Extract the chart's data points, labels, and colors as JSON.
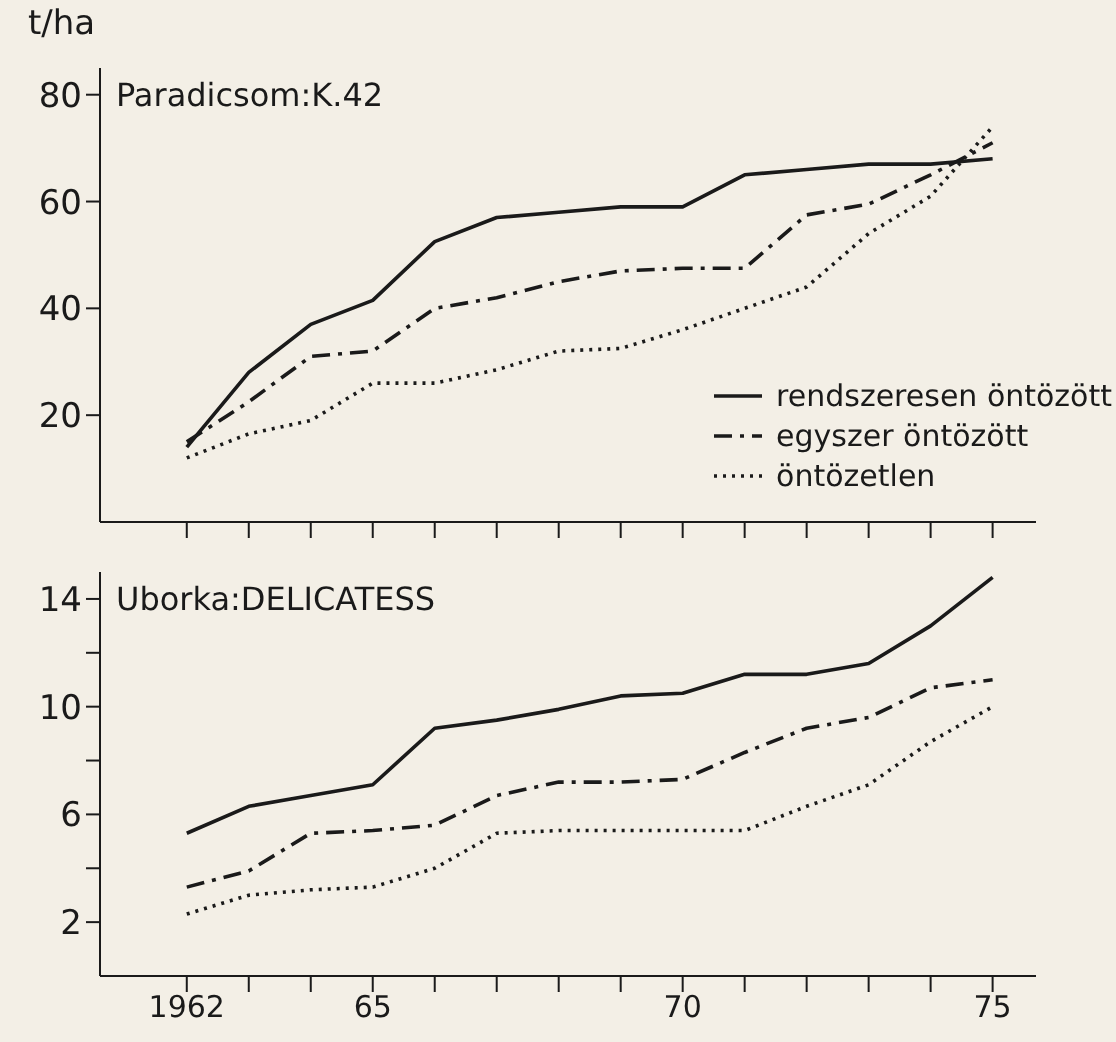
{
  "chart_data": [
    {
      "type": "line",
      "title": "Paradicsom:K.42",
      "ylabel": "t/ha",
      "x": [
        1962,
        1963,
        1964,
        1965,
        1966,
        1967,
        1968,
        1969,
        1970,
        1971,
        1972,
        1973,
        1974,
        1975
      ],
      "series": [
        {
          "name": "rendszeresen öntözött",
          "color": "#1a1a1a",
          "line_style": "solid",
          "values": [
            14,
            28,
            37,
            41.5,
            52.5,
            57,
            58,
            59,
            59,
            65,
            66,
            67,
            67,
            68
          ]
        },
        {
          "name": "egyszer öntözött",
          "color": "#1a1a1a",
          "line_style": "dashed",
          "values": [
            15,
            22.5,
            31,
            32,
            40,
            42,
            45,
            47,
            47.5,
            47.5,
            57.5,
            59.5,
            65,
            71
          ]
        },
        {
          "name": "öntözetlen",
          "color": "#1a1a1a",
          "line_style": "dotted",
          "values": [
            12,
            16.5,
            19,
            26,
            26,
            28.5,
            32,
            32.5,
            36,
            40,
            44,
            54,
            61,
            74
          ]
        }
      ],
      "xlim": [
        1960.6,
        1975.7
      ],
      "xticks": [
        {
          "value": 1962,
          "label": null
        },
        {
          "value": 1963,
          "label": null
        },
        {
          "value": 1964,
          "label": null
        },
        {
          "value": 1965,
          "label": null
        },
        {
          "value": 1966,
          "label": null
        },
        {
          "value": 1967,
          "label": null
        },
        {
          "value": 1968,
          "label": null
        },
        {
          "value": 1969,
          "label": null
        },
        {
          "value": 1970,
          "label": null
        },
        {
          "value": 1971,
          "label": null
        },
        {
          "value": 1972,
          "label": null
        },
        {
          "value": 1973,
          "label": null
        },
        {
          "value": 1974,
          "label": null
        },
        {
          "value": 1975,
          "label": null
        }
      ],
      "ylim": [
        0,
        85
      ],
      "yticks": [
        20,
        40,
        60,
        80
      ],
      "grid": false,
      "legend": "bottom right",
      "marker": "none",
      "tick_labels": "y"
    },
    {
      "type": "line",
      "title": "Uborka:DELICATESS",
      "x": [
        1962,
        1963,
        1964,
        1965,
        1966,
        1967,
        1968,
        1969,
        1970,
        1971,
        1972,
        1973,
        1974,
        1975
      ],
      "series": [
        {
          "color": "#1a1a1a",
          "line_style": "solid",
          "values": [
            5.3,
            6.3,
            6.7,
            7.1,
            9.2,
            9.5,
            9.9,
            10.4,
            10.5,
            11.2,
            11.2,
            11.6,
            13,
            14.8
          ]
        },
        {
          "color": "#1a1a1a",
          "line_style": "dashed",
          "values": [
            3.3,
            3.9,
            5.3,
            5.4,
            5.6,
            6.7,
            7.2,
            7.2,
            7.3,
            8.3,
            9.2,
            9.6,
            10.7,
            11
          ]
        },
        {
          "color": "#1a1a1a",
          "line_style": "dotted",
          "values": [
            2.3,
            3,
            3.2,
            3.3,
            4,
            5.3,
            5.4,
            5.4,
            5.4,
            5.4,
            6.3,
            7.1,
            8.7,
            10
          ]
        }
      ],
      "xlim": [
        1960.6,
        1975.7
      ],
      "xticks": [
        1962,
        {
          "value": 1963,
          "label": null
        },
        {
          "value": 1964,
          "label": null
        },
        {
          "value": 1965,
          "label": "65"
        },
        {
          "value": 1966,
          "label": null
        },
        {
          "value": 1967,
          "label": null
        },
        {
          "value": 1968,
          "label": null
        },
        {
          "value": 1969,
          "label": null
        },
        {
          "value": 1970,
          "label": "70"
        },
        {
          "value": 1971,
          "label": null
        },
        {
          "value": 1972,
          "label": null
        },
        {
          "value": 1973,
          "label": null
        },
        {
          "value": 1974,
          "label": null
        },
        {
          "value": 1975,
          "label": "75"
        }
      ],
      "ylim": [
        0,
        15
      ],
      "yticks": [
        {
          "value": 2,
          "label": "2"
        },
        {
          "value": 4,
          "label": null
        },
        {
          "value": 6,
          "label": "6"
        },
        {
          "value": 8,
          "label": null
        },
        {
          "value": 10,
          "label": "10"
        },
        {
          "value": 12,
          "label": null
        },
        {
          "value": 14,
          "label": "14"
        }
      ],
      "grid": false,
      "legend": false,
      "marker": "none"
    }
  ]
}
